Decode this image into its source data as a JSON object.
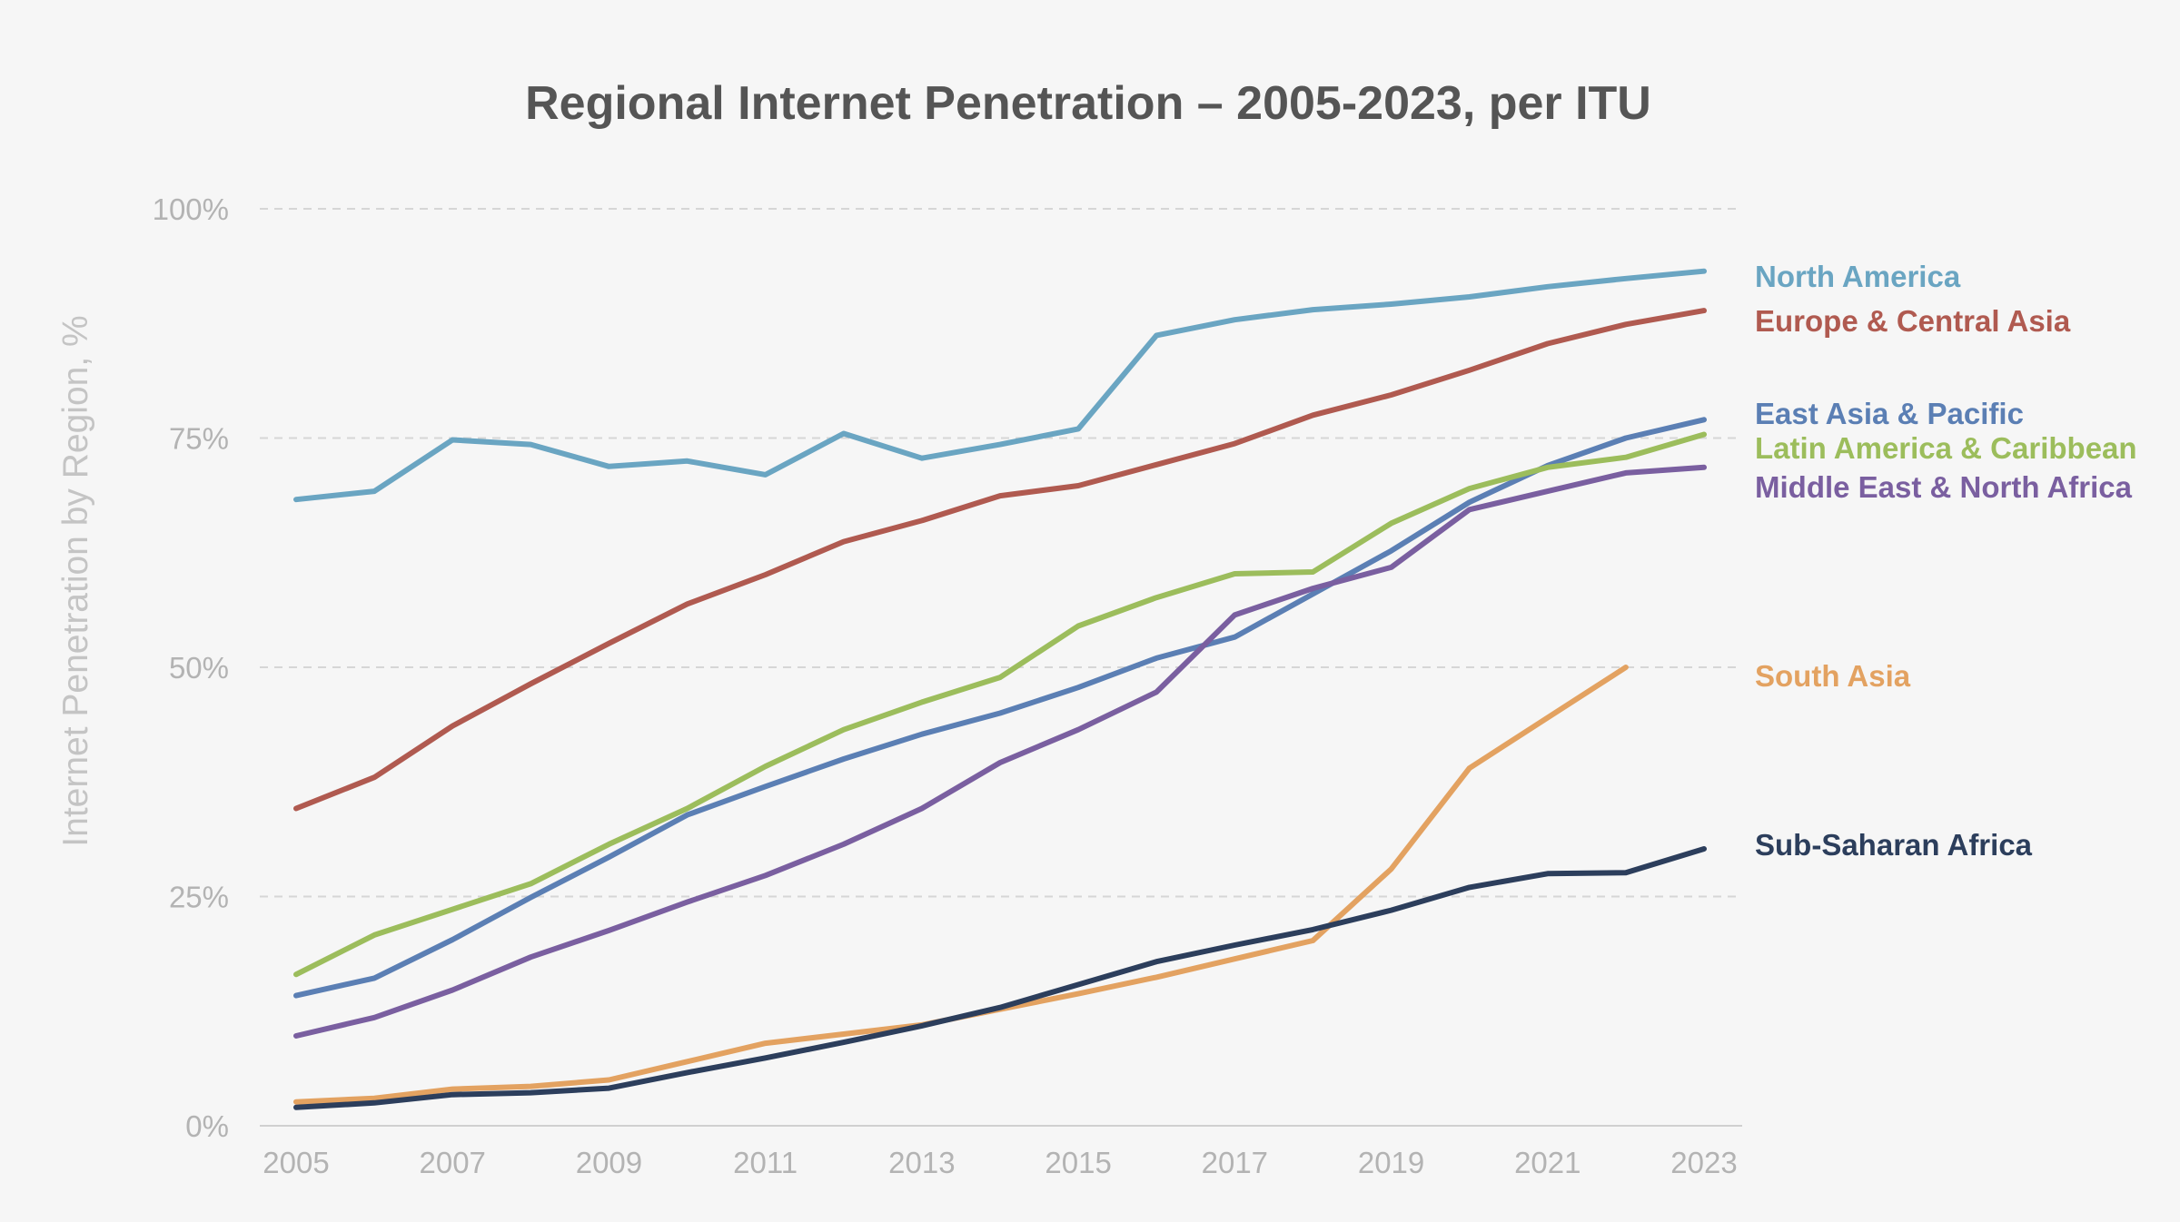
{
  "chart_data": {
    "type": "line",
    "title": "Regional Internet Penetration – 2005-2023, per ITU",
    "ylabel": "Internet Penetration by Region, %",
    "xlabel": "",
    "x": [
      2005,
      2006,
      2007,
      2008,
      2009,
      2010,
      2011,
      2012,
      2013,
      2014,
      2015,
      2016,
      2017,
      2018,
      2019,
      2020,
      2021,
      2022,
      2023
    ],
    "x_ticks": [
      "2005",
      "2007",
      "2009",
      "2011",
      "2013",
      "2015",
      "2017",
      "2019",
      "2021",
      "2023"
    ],
    "ylim": [
      0,
      100
    ],
    "y_ticks": [
      "0%",
      "25%",
      "50%",
      "75%",
      "100%"
    ],
    "grid": "horizontal dashed",
    "legend": "direct labels at right of lines",
    "series": [
      {
        "name": "North America",
        "color": "#6aa5c2",
        "values": [
          68.3,
          69.2,
          74.8,
          74.3,
          71.9,
          72.5,
          71.0,
          75.5,
          72.8,
          74.3,
          76.0,
          86.2,
          87.9,
          89.0,
          89.6,
          90.4,
          91.5,
          92.4,
          93.2
        ]
      },
      {
        "name": "Europe & Central Asia",
        "color": "#b05a50",
        "values": [
          34.6,
          38.0,
          43.6,
          48.2,
          52.6,
          56.9,
          60.1,
          63.7,
          66.0,
          68.7,
          69.8,
          72.1,
          74.4,
          77.5,
          79.7,
          82.4,
          85.3,
          87.4,
          88.9
        ]
      },
      {
        "name": "East Asia & Pacific",
        "color": "#5b7fb4",
        "values": [
          14.2,
          16.1,
          20.3,
          24.9,
          29.3,
          33.9,
          37.0,
          40.0,
          42.7,
          45.0,
          47.8,
          51.0,
          53.3,
          58.0,
          62.7,
          68.0,
          72.0,
          75.0,
          77.0
        ]
      },
      {
        "name": "Latin America & Caribbean",
        "color": "#9cbd5c",
        "values": [
          16.5,
          20.8,
          23.6,
          26.4,
          30.7,
          34.6,
          39.2,
          43.2,
          46.2,
          48.9,
          54.5,
          57.6,
          60.2,
          60.4,
          65.7,
          69.5,
          71.8,
          72.9,
          75.4
        ]
      },
      {
        "name": "Middle East & North Africa",
        "color": "#7a5fa0",
        "values": [
          9.8,
          11.8,
          14.8,
          18.4,
          21.3,
          24.4,
          27.3,
          30.7,
          34.6,
          39.6,
          43.2,
          47.3,
          55.7,
          58.6,
          60.9,
          67.2,
          69.2,
          71.2,
          71.8
        ]
      },
      {
        "name": "South Asia",
        "color": "#e3a261",
        "values": [
          2.6,
          3.0,
          4.0,
          4.3,
          5.0,
          7.0,
          9.0,
          10.0,
          11.0,
          12.7,
          14.4,
          16.2,
          18.2,
          20.2,
          28.0,
          39.0,
          44.5,
          50.0,
          null
        ]
      },
      {
        "name": "Sub-Saharan Africa",
        "color": "#2c3e5c",
        "values": [
          2.0,
          2.5,
          3.4,
          3.6,
          4.1,
          5.8,
          7.4,
          9.1,
          10.9,
          12.9,
          15.4,
          17.9,
          19.7,
          21.4,
          23.5,
          26.0,
          27.5,
          27.6,
          30.2
        ]
      }
    ]
  }
}
